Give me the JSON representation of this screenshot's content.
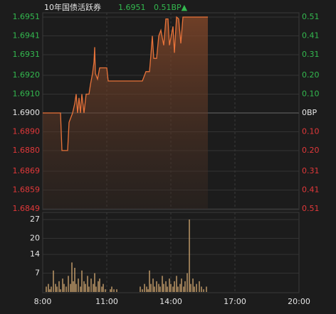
{
  "chart_data": [
    {
      "type": "line",
      "title": "10年国债活跃券",
      "annotations": [
        "1.6951",
        "0.51BP▲"
      ],
      "color": "#e8733a",
      "up_color": "#33b94f",
      "down_color": "#e2383a",
      "flat_color": "#e6e6e6",
      "x": [
        "8:00",
        "8:50",
        "8:54",
        "9:10",
        "9:14",
        "9:18",
        "9:24",
        "9:30",
        "9:34",
        "9:38",
        "9:42",
        "9:46",
        "9:50",
        "9:56",
        "10:02",
        "10:10",
        "10:14",
        "10:20",
        "10:24",
        "10:26",
        "10:28",
        "10:34",
        "10:40",
        "11:00",
        "11:04",
        "12:40",
        "12:50",
        "13:00",
        "13:04",
        "13:08",
        "13:12",
        "13:20",
        "13:26",
        "13:32",
        "13:40",
        "13:46",
        "13:52",
        "13:56",
        "14:00",
        "14:06",
        "14:10",
        "14:16",
        "14:22",
        "14:28",
        "14:34",
        "15:44"
      ],
      "values": [
        1.69,
        1.69,
        1.688,
        1.688,
        1.6895,
        1.6897,
        1.69,
        1.6905,
        1.691,
        1.69,
        1.6908,
        1.69,
        1.691,
        1.69,
        1.691,
        1.691,
        1.6915,
        1.6921,
        1.6927,
        1.6935,
        1.6921,
        1.6918,
        1.6924,
        1.6924,
        1.6917,
        1.6917,
        1.6922,
        1.6922,
        1.6931,
        1.6941,
        1.6929,
        1.6929,
        1.6941,
        1.6944,
        1.6936,
        1.695,
        1.695,
        1.6936,
        1.694,
        1.6946,
        1.6932,
        1.6951,
        1.695,
        1.6937,
        1.6951,
        1.6951
      ],
      "xlim": [
        "8:00",
        "20:00"
      ],
      "ylim": [
        1.6849,
        1.6951
      ],
      "yticks": [
        1.6951,
        1.6941,
        1.6931,
        {
          "value": 1.692,
          "label": "1.6920"
        },
        {
          "value": 1.691,
          "label": "1.6910"
        },
        {
          "value": 1.69,
          "label": "1.6900"
        },
        {
          "value": 1.689,
          "label": "1.6890"
        },
        {
          "value": 1.688,
          "label": "1.6880"
        },
        1.6869,
        1.6859,
        1.6849
      ],
      "y2lim": [
        -0.51,
        0.51
      ],
      "y2ticks": [
        0.51,
        0.41,
        0.31,
        {
          "value": 0.2,
          "label": "0.20"
        },
        {
          "value": 0.1,
          "label": "0.10"
        },
        {
          "value": 0,
          "label": "0BP"
        },
        {
          "value": -0.1,
          "label": "0.10"
        },
        {
          "value": -0.2,
          "label": "0.20"
        },
        {
          "value": -0.31,
          "label": "0.31"
        },
        {
          "value": -0.41,
          "label": "0.41"
        },
        {
          "value": -0.51,
          "label": "0.51"
        }
      ],
      "grid": true
    },
    {
      "type": "bar",
      "color": "#c9a06c",
      "x": [
        "8:10",
        "8:16",
        "8:20",
        "8:24",
        "8:30",
        "8:36",
        "8:40",
        "8:46",
        "8:50",
        "8:56",
        "9:00",
        "9:06",
        "9:12",
        "9:18",
        "9:22",
        "9:26",
        "9:30",
        "9:34",
        "9:40",
        "9:46",
        "9:50",
        "9:56",
        "10:00",
        "10:06",
        "10:10",
        "10:16",
        "10:22",
        "10:26",
        "10:30",
        "10:36",
        "10:40",
        "10:46",
        "10:50",
        "10:56",
        "11:10",
        "11:14",
        "11:20",
        "11:28",
        "12:34",
        "12:40",
        "12:46",
        "12:52",
        "12:56",
        "13:00",
        "13:04",
        "13:10",
        "13:14",
        "13:20",
        "13:26",
        "13:30",
        "13:36",
        "13:40",
        "13:46",
        "13:50",
        "13:56",
        "14:00",
        "14:06",
        "14:10",
        "14:16",
        "14:20",
        "14:26",
        "14:30",
        "14:36",
        "14:40",
        "14:46",
        "14:52",
        "14:56",
        "15:02",
        "15:06",
        "15:12",
        "15:20",
        "15:26",
        "15:32",
        "15:40"
      ],
      "values": [
        2,
        3,
        1,
        2,
        8,
        3,
        2,
        4,
        1,
        5,
        3,
        2,
        6,
        3,
        11,
        4,
        9,
        3,
        5,
        2,
        8,
        4,
        3,
        6,
        2,
        5,
        3,
        7,
        2,
        4,
        5,
        2,
        3,
        1,
        1,
        2,
        1,
        1,
        2,
        1,
        3,
        2,
        1,
        8,
        3,
        5,
        2,
        4,
        3,
        2,
        6,
        3,
        4,
        2,
        5,
        3,
        2,
        4,
        6,
        2,
        3,
        5,
        2,
        4,
        7,
        27,
        3,
        5,
        2,
        3,
        4,
        2,
        1,
        2
      ],
      "xlim": [
        "8:00",
        "20:00"
      ],
      "xticks": [
        "8:00",
        "11:00",
        "14:00",
        "17:00",
        "20:00"
      ],
      "ylim": [
        0,
        27
      ],
      "yticks": [
        7,
        14,
        20,
        27
      ],
      "grid": true
    }
  ]
}
